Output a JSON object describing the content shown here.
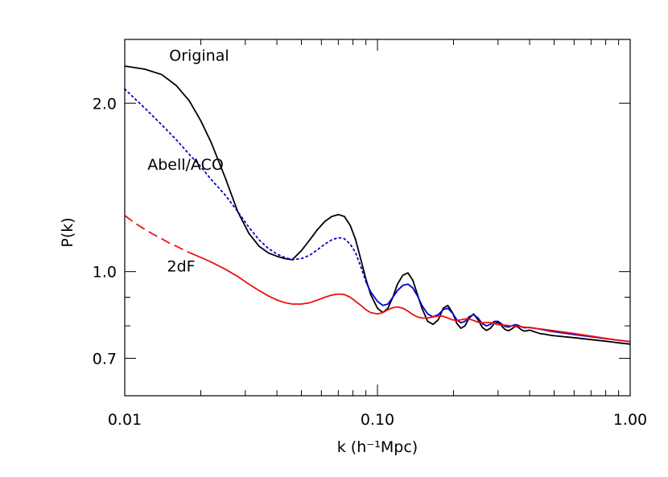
{
  "chart_data": {
    "type": "line",
    "title": "",
    "xlabel": "k (h⁻¹Mpc)",
    "ylabel": "P(k)",
    "xscale": "log",
    "yscale": "log",
    "xlim": [
      0.01,
      1.0
    ],
    "ylim": [
      0.6,
      2.6
    ],
    "grid": false,
    "legend": "none",
    "x_ticks": [
      {
        "value": 0.01,
        "label": "0.01"
      },
      {
        "value": 0.1,
        "label": "0.10"
      },
      {
        "value": 1.0,
        "label": "1.00"
      }
    ],
    "y_ticks": [
      {
        "value": 0.7,
        "label": "0.7"
      },
      {
        "value": 1.0,
        "label": "1.0"
      },
      {
        "value": 2.0,
        "label": "2.0"
      }
    ],
    "annotations": [
      {
        "text": "Original",
        "x": 0.015,
        "y": 2.38
      },
      {
        "text": "Abell/ACO",
        "x": 0.0123,
        "y": 1.52
      },
      {
        "text": "2dF",
        "x": 0.0147,
        "y": 1.0
      }
    ],
    "series": [
      {
        "style": "solid",
        "color": "#000000",
        "x": [
          0.01,
          0.012,
          0.014,
          0.016,
          0.018,
          0.02,
          0.022,
          0.025,
          0.028,
          0.031,
          0.034,
          0.037,
          0.04,
          0.043,
          0.046,
          0.05,
          0.054,
          0.058,
          0.062,
          0.066,
          0.07,
          0.074,
          0.078,
          0.082,
          0.086,
          0.09,
          0.094,
          0.1,
          0.105,
          0.11,
          0.115,
          0.12,
          0.126,
          0.132,
          0.138,
          0.144,
          0.15,
          0.158,
          0.166,
          0.174,
          0.182,
          0.19,
          0.198,
          0.206,
          0.214,
          0.222,
          0.23,
          0.24,
          0.25,
          0.26,
          0.27,
          0.28,
          0.29,
          0.3,
          0.31,
          0.32,
          0.33,
          0.34,
          0.35,
          0.36,
          0.37,
          0.38,
          0.39,
          0.4,
          0.42,
          0.44,
          0.46,
          0.48,
          0.5,
          0.6,
          0.7,
          0.8,
          0.9,
          1.0
        ],
        "y": [
          2.33,
          2.3,
          2.25,
          2.15,
          2.02,
          1.86,
          1.7,
          1.47,
          1.28,
          1.17,
          1.11,
          1.08,
          1.065,
          1.055,
          1.05,
          1.09,
          1.14,
          1.19,
          1.23,
          1.255,
          1.265,
          1.255,
          1.21,
          1.14,
          1.05,
          0.97,
          0.91,
          0.86,
          0.845,
          0.86,
          0.9,
          0.95,
          0.985,
          0.995,
          0.965,
          0.91,
          0.86,
          0.815,
          0.805,
          0.82,
          0.86,
          0.87,
          0.845,
          0.808,
          0.792,
          0.8,
          0.825,
          0.84,
          0.82,
          0.795,
          0.785,
          0.792,
          0.808,
          0.812,
          0.8,
          0.788,
          0.784,
          0.79,
          0.798,
          0.796,
          0.788,
          0.783,
          0.784,
          0.786,
          0.78,
          0.775,
          0.773,
          0.77,
          0.768,
          0.762,
          0.756,
          0.751,
          0.746,
          0.742
        ]
      },
      {
        "style": "dotted",
        "color": "#0000cc",
        "x": [
          0.01,
          0.012,
          0.014,
          0.016,
          0.018,
          0.02,
          0.022,
          0.025,
          0.028,
          0.031,
          0.034,
          0.037,
          0.04,
          0.043,
          0.046,
          0.05,
          0.054,
          0.058,
          0.062,
          0.066,
          0.07,
          0.074,
          0.078,
          0.082,
          0.086,
          0.09
        ],
        "y": [
          2.12,
          1.96,
          1.83,
          1.72,
          1.62,
          1.54,
          1.46,
          1.37,
          1.28,
          1.2,
          1.14,
          1.1,
          1.075,
          1.06,
          1.05,
          1.055,
          1.07,
          1.095,
          1.12,
          1.14,
          1.15,
          1.145,
          1.12,
          1.08,
          1.02,
          0.96
        ]
      },
      {
        "style": "solid",
        "color": "#0000cc",
        "x": [
          0.09,
          0.094,
          0.1,
          0.105,
          0.11,
          0.115,
          0.12,
          0.126,
          0.132,
          0.138,
          0.144,
          0.15,
          0.158,
          0.166,
          0.174,
          0.182,
          0.19,
          0.198,
          0.206,
          0.214,
          0.222,
          0.23,
          0.24,
          0.25,
          0.26,
          0.27,
          0.28,
          0.29,
          0.3,
          0.31,
          0.32,
          0.33,
          0.34,
          0.35,
          0.36,
          0.37,
          0.38,
          0.39,
          0.4,
          0.42,
          0.44,
          0.46,
          0.48,
          0.5,
          0.6,
          0.7,
          0.8,
          0.9,
          1.0
        ],
        "y": [
          0.96,
          0.92,
          0.885,
          0.87,
          0.875,
          0.9,
          0.925,
          0.945,
          0.95,
          0.935,
          0.905,
          0.87,
          0.84,
          0.83,
          0.838,
          0.855,
          0.86,
          0.843,
          0.82,
          0.81,
          0.815,
          0.83,
          0.838,
          0.826,
          0.807,
          0.8,
          0.805,
          0.815,
          0.815,
          0.806,
          0.798,
          0.796,
          0.8,
          0.804,
          0.802,
          0.797,
          0.794,
          0.794,
          0.795,
          0.792,
          0.789,
          0.786,
          0.783,
          0.781,
          0.772,
          0.765,
          0.759,
          0.754,
          0.75
        ]
      },
      {
        "style": "dashed",
        "color": "#ee1111",
        "x": [
          0.01,
          0.011,
          0.012,
          0.013,
          0.014,
          0.015,
          0.016,
          0.017,
          0.018
        ],
        "y": [
          1.26,
          1.22,
          1.19,
          1.165,
          1.145,
          1.125,
          1.11,
          1.095,
          1.082
        ]
      },
      {
        "style": "solid",
        "color": "#ee1111",
        "x": [
          0.018,
          0.02,
          0.022,
          0.025,
          0.028,
          0.031,
          0.034,
          0.037,
          0.04,
          0.043,
          0.046,
          0.05,
          0.054,
          0.058,
          0.062,
          0.066,
          0.07,
          0.074,
          0.078,
          0.082,
          0.086,
          0.09,
          0.094,
          0.1,
          0.105,
          0.11,
          0.115,
          0.12,
          0.126,
          0.132,
          0.138,
          0.144,
          0.15,
          0.158,
          0.166,
          0.174,
          0.182,
          0.19,
          0.198,
          0.206,
          0.214,
          0.222,
          0.23,
          0.24,
          0.25,
          0.26,
          0.27,
          0.28,
          0.29,
          0.3,
          0.32,
          0.34,
          0.36,
          0.38,
          0.4,
          0.45,
          0.5,
          0.6,
          0.7,
          0.8,
          0.9,
          1.0
        ],
        "y": [
          1.082,
          1.06,
          1.04,
          1.01,
          0.98,
          0.95,
          0.925,
          0.905,
          0.89,
          0.88,
          0.875,
          0.875,
          0.88,
          0.89,
          0.9,
          0.908,
          0.912,
          0.91,
          0.9,
          0.885,
          0.87,
          0.855,
          0.845,
          0.84,
          0.845,
          0.855,
          0.862,
          0.865,
          0.86,
          0.85,
          0.838,
          0.83,
          0.826,
          0.826,
          0.83,
          0.833,
          0.832,
          0.826,
          0.82,
          0.818,
          0.82,
          0.823,
          0.823,
          0.818,
          0.812,
          0.81,
          0.811,
          0.811,
          0.808,
          0.804,
          0.802,
          0.8,
          0.798,
          0.796,
          0.794,
          0.789,
          0.784,
          0.775,
          0.767,
          0.76,
          0.754,
          0.75
        ]
      }
    ]
  }
}
